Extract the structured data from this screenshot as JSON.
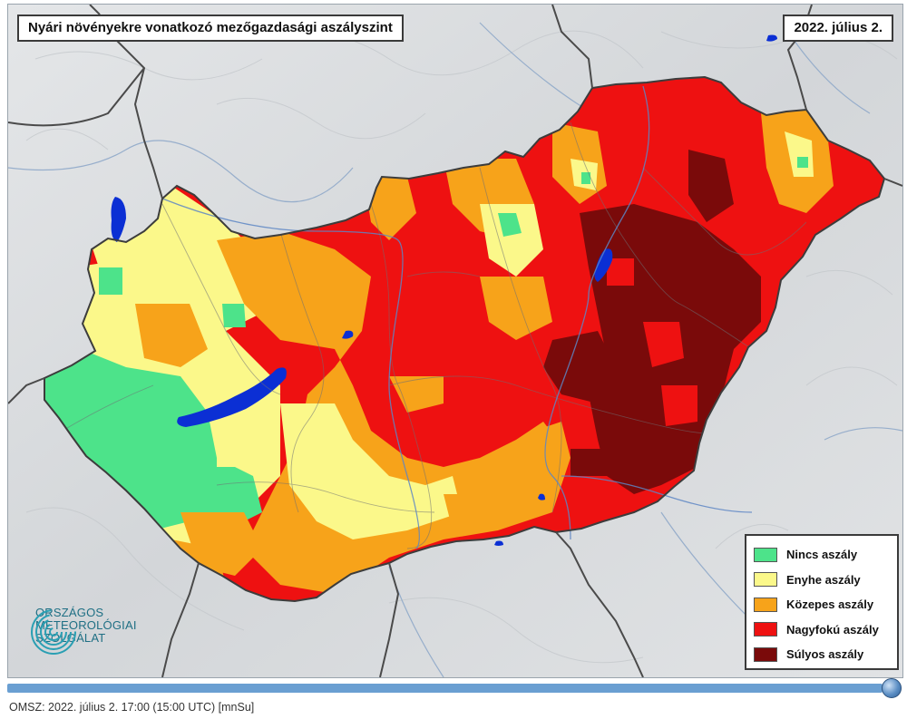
{
  "map": {
    "title": "Nyári növényekre vonatkozó mezőgazdasági aszályszint",
    "date": "2022. július 2."
  },
  "legend": {
    "items": [
      {
        "label": "Nincs aszály",
        "color": "#4de38a"
      },
      {
        "label": "Enyhe aszály",
        "color": "#fbf88a"
      },
      {
        "label": "Közepes aszály",
        "color": "#f7a31a"
      },
      {
        "label": "Nagyfokú aszály",
        "color": "#ee1111"
      },
      {
        "label": "Súlyos aszály",
        "color": "#7a0a0a"
      }
    ]
  },
  "logo": {
    "line1": "ORSZÁGOS",
    "line2": "METEOROLÓGIAI",
    "line3": "SZOLGÁLAT",
    "icon": "omsz-logo-icon"
  },
  "timeline": {
    "thumb_icon": "slider-thumb-icon"
  },
  "footer": {
    "text": "OMSZ: 2022. július 2. 17:00 (15:00  UTC)  [mnSu]"
  },
  "colors": {
    "no_drought": "#4de38a",
    "mild": "#fbf88a",
    "moderate": "#f7a31a",
    "severe": "#ee1111",
    "extreme": "#7a0a0a",
    "water": "#0b2fd4",
    "terrain": "#d9dcdf",
    "border": "#555555",
    "slider": "#6a9fd2"
  }
}
